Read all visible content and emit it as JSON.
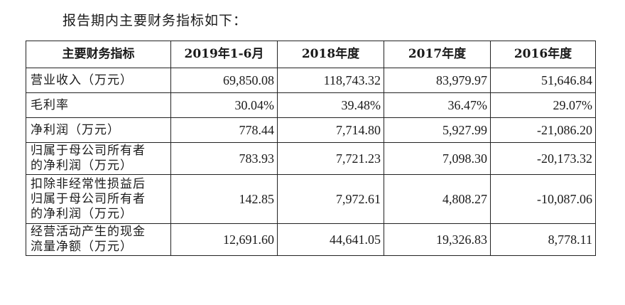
{
  "intro_text": "报告期内主要财务指标如下：",
  "table": {
    "headers": [
      "主要财务指标",
      "2019年1-6月",
      "2018年度",
      "2017年度",
      "2016年度"
    ],
    "rows": [
      {
        "label": "营业收入（万元）",
        "values": [
          "69,850.08",
          "118,743.32",
          "83,979.97",
          "51,646.84"
        ]
      },
      {
        "label": "毛利率",
        "values": [
          "30.04%",
          "39.48%",
          "36.47%",
          "29.07%"
        ]
      },
      {
        "label": "净利润（万元）",
        "values": [
          "778.44",
          "7,714.80",
          "5,927.99",
          "-21,086.20"
        ]
      },
      {
        "label": "归属于母公司所有者\n的净利润（万元）",
        "values": [
          "783.93",
          "7,721.23",
          "7,098.30",
          "-20,173.32"
        ]
      },
      {
        "label": "扣除非经常性损益后\n归属于母公司所有者\n的净利润（万元）",
        "values": [
          "142.85",
          "7,972.61",
          "4,808.27",
          "-10,087.06"
        ]
      },
      {
        "label": "经营活动产生的现金\n流量净额（万元）",
        "values": [
          "12,691.60",
          "44,641.05",
          "19,326.83",
          "8,778.11"
        ]
      }
    ]
  }
}
